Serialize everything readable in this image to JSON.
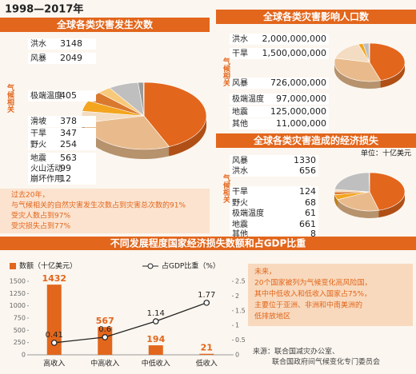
{
  "header": {
    "title": "1998—2017年"
  },
  "chart_data": [
    {
      "type": "pie",
      "title": "全球各类灾害发生次数",
      "group_label": "气候相关",
      "categories": [
        "洪水",
        "风暴",
        "极端温度",
        "滑坡",
        "干旱",
        "野火",
        "地震",
        "火山活动",
        "崩坏作用"
      ],
      "values": [
        3148,
        2049,
        405,
        378,
        347,
        254,
        563,
        99,
        12
      ],
      "colors": [
        "#e2661c",
        "#e9bb8c",
        "#f3dcc2",
        "#f3a51f",
        "#d9792f",
        "#f7c97a",
        "#bfbfbf",
        "#9a9a9a",
        "#707070"
      ]
    },
    {
      "type": "pie",
      "title": "全球各类灾害影响人口数",
      "group_label": "气候相关",
      "categories": [
        "洪水",
        "干旱",
        "风暴",
        "极端温度",
        "地震",
        "其他"
      ],
      "values": [
        2000000000,
        1500000000,
        726000000,
        97000000,
        125000000,
        11000000
      ],
      "value_labels": [
        "2,000,000,000",
        "1,500,000,000",
        "726,000,000",
        "97,000,000",
        "125,000,000",
        "11,000,000"
      ],
      "colors": [
        "#e2661c",
        "#e9bb8c",
        "#f3dcc2",
        "#f3a51f",
        "#bfbfbf",
        "#8a8a8a"
      ]
    },
    {
      "type": "pie",
      "title": "全球各类灾害造成的经济损失",
      "unit": "单位：十亿美元",
      "group_label": "气候相关",
      "categories": [
        "风暴",
        "洪水",
        "干旱",
        "野火",
        "极端温度",
        "地震",
        "其他"
      ],
      "values": [
        1330,
        656,
        124,
        68,
        61,
        661,
        8
      ],
      "colors": [
        "#e2661c",
        "#e9bb8c",
        "#f3a51f",
        "#d9792f",
        "#f3dcc2",
        "#bfbfbf",
        "#8a8a8a"
      ]
    },
    {
      "type": "bar",
      "title": "不同发展程度国家经济损失数额和占GDP比重",
      "categories": [
        "高收入",
        "中高收入",
        "中低收入",
        "低收入"
      ],
      "series": [
        {
          "name": "数额（十亿美元）",
          "color": "#e2661c",
          "values": [
            1432,
            567,
            194,
            21
          ]
        },
        {
          "name": "占GDP比重（%）",
          "color": "#222222",
          "axis": "y2",
          "values": [
            0.41,
            0.6,
            1.14,
            1.77
          ]
        }
      ],
      "ylim": [
        0,
        1500
      ],
      "yticks": [
        0,
        250,
        500,
        750,
        1000,
        1250,
        1500
      ],
      "y2lim": [
        0,
        2.5
      ],
      "y2ticks": [
        0,
        0.5,
        1,
        1.5,
        2,
        2.5
      ]
    }
  ],
  "notes": [
    [
      "过去20年，",
      "与气候相关的自然灾害发生次数占到灾害总次数的91%",
      "受灾人数占到97%",
      "受灾损失占到77%"
    ],
    [
      "未来，",
      "20个国家被列为气候变化高风险国，",
      "其中中低收入和低收入国家占75%，",
      "主要位于亚洲、非洲和中南美洲的",
      "低排放地区"
    ]
  ],
  "source": [
    "来源：联合国减灾办公室、",
    "联合国政府间气候变化专门委员会"
  ]
}
